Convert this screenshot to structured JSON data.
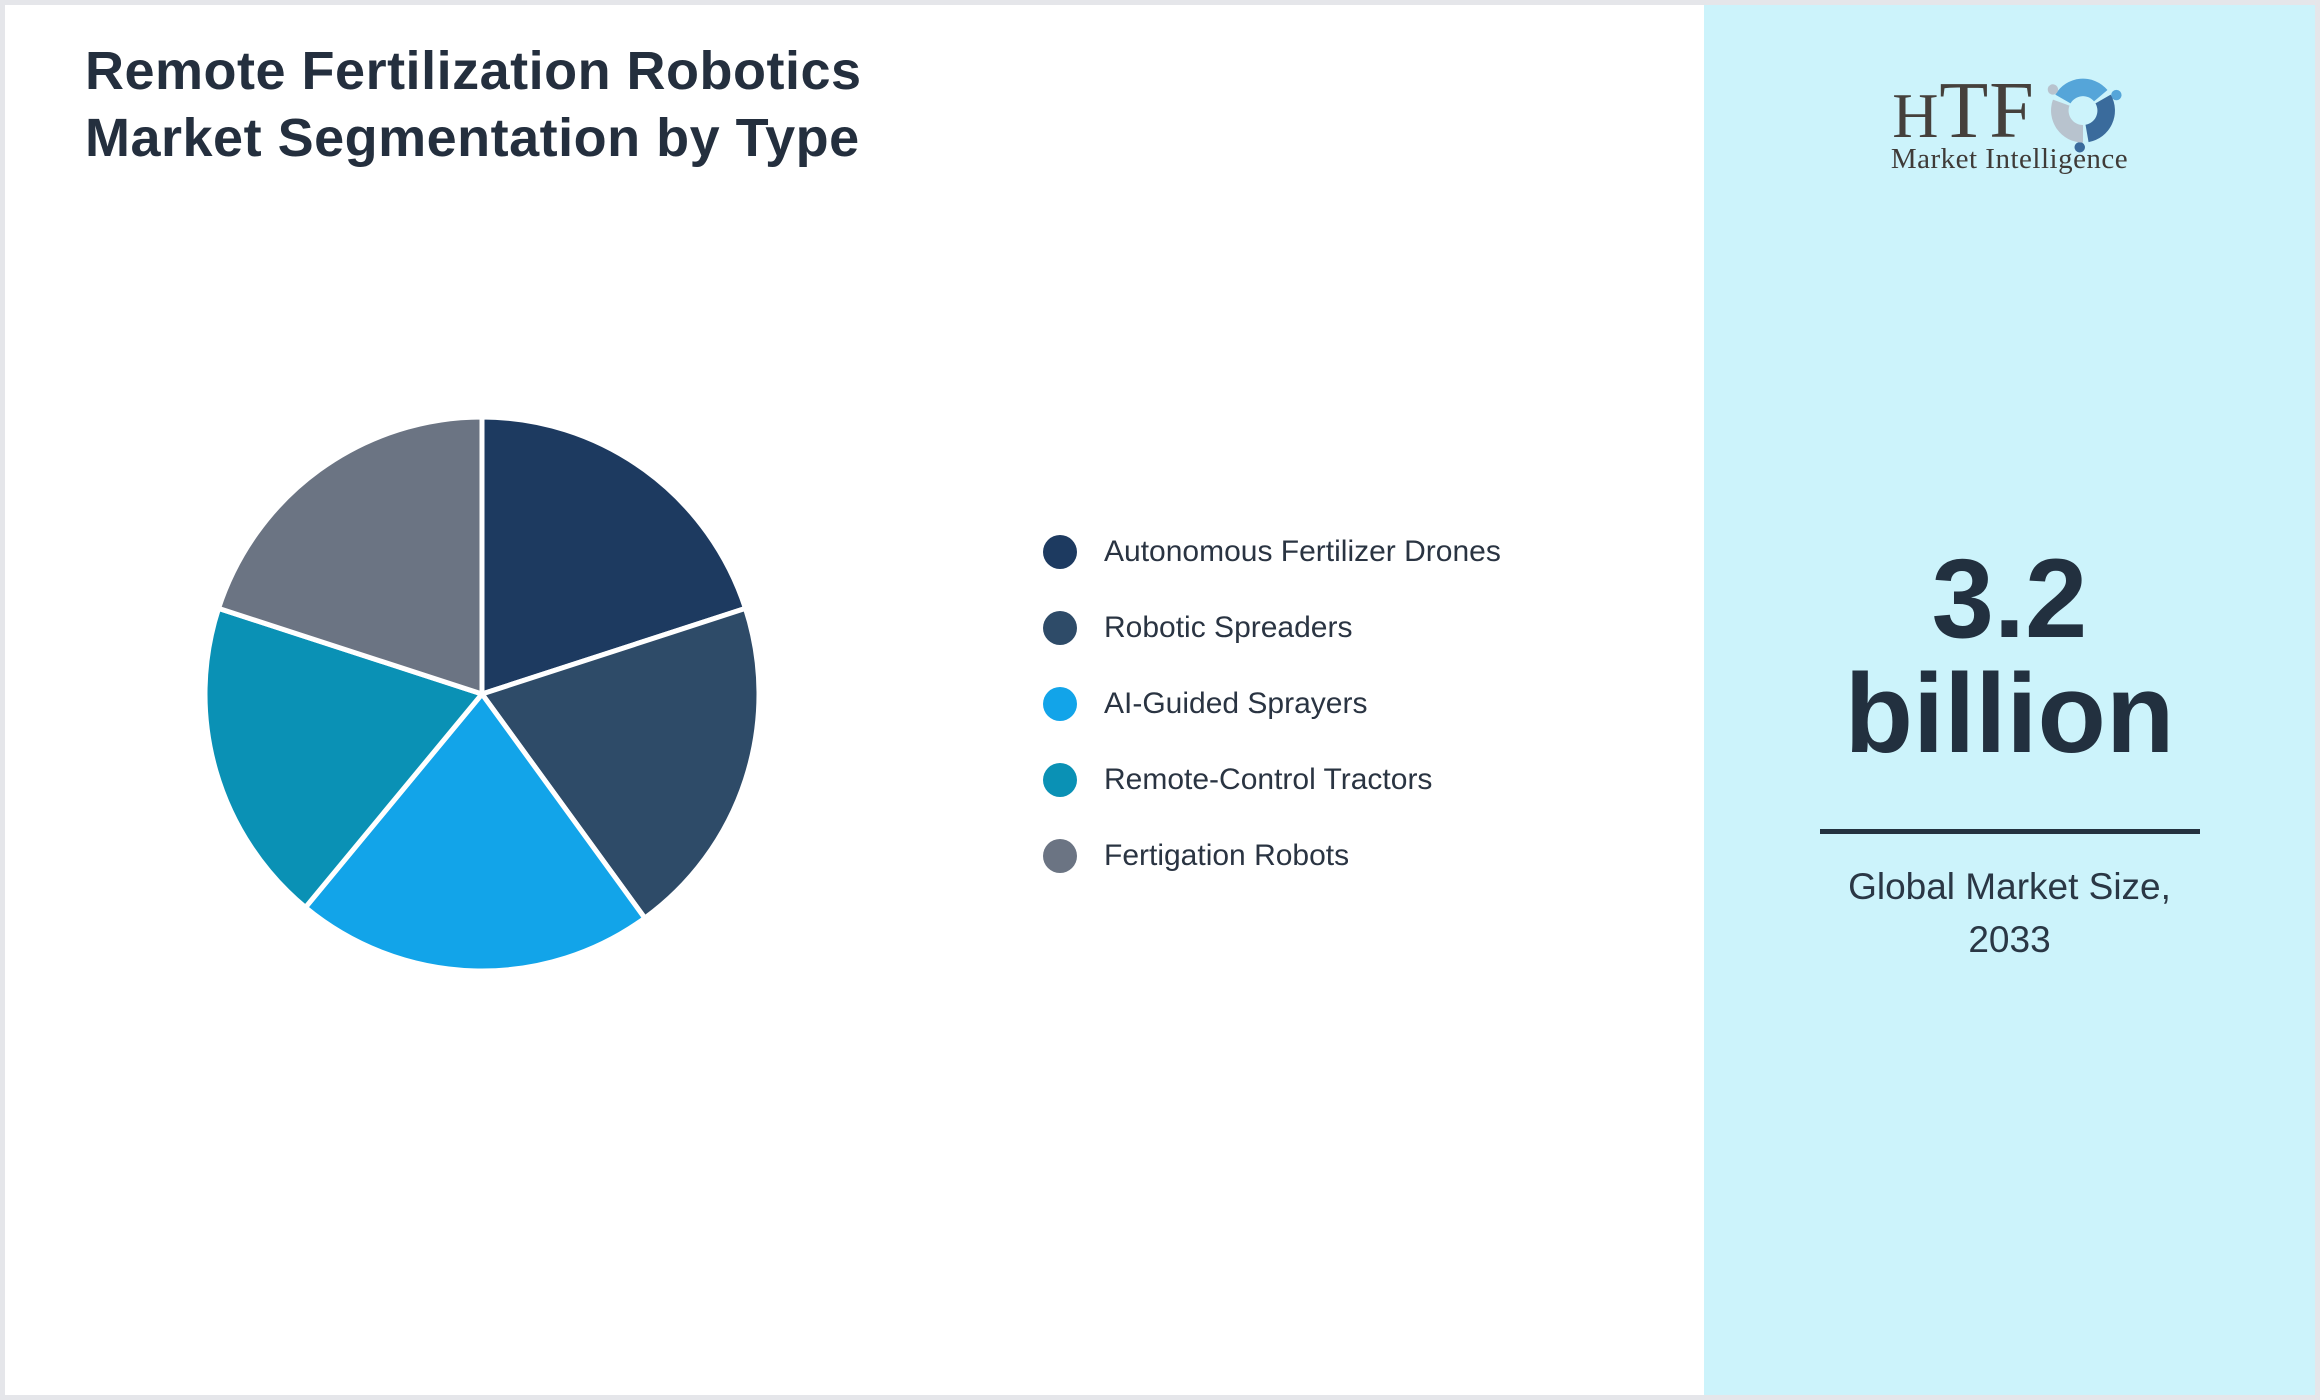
{
  "page": {
    "title": "Remote Fertilization Robotics\nMarket Segmentation by Type"
  },
  "chart_data": {
    "type": "pie",
    "title": "Remote Fertilization Robotics Market Segmentation by Type",
    "categories": [
      "Autonomous Fertilizer Drones",
      "Robotic Spreaders",
      "AI-Guided Sprayers",
      "Remote-Control Tractors",
      "Fertigation Robots"
    ],
    "values": [
      20,
      20,
      21,
      19,
      20
    ],
    "colors": [
      "#1d3a60",
      "#2e4b68",
      "#12a4e9",
      "#0a91b5",
      "#6b7483"
    ],
    "start_angle_deg": 0,
    "direction": "clockwise",
    "slice_border_color": "#ffffff",
    "legend_position": "right",
    "data_labels": false
  },
  "sidebar": {
    "background": "#ccf3fb",
    "logo": {
      "brand": "HTF",
      "tagline": "Market Intelligence",
      "swirl_colors": [
        "#55a5d9",
        "#3a6b9c",
        "#b8c3ce"
      ]
    },
    "stat_value": "3.2 billion",
    "stat_caption": "Global Market Size,\n2033",
    "accent_color": "#24313f"
  },
  "colors": {
    "title_text": "#242f3e",
    "legend_text": "#2a3442",
    "frame_border": "#e5e6ea",
    "main_background": "#ffffff"
  }
}
